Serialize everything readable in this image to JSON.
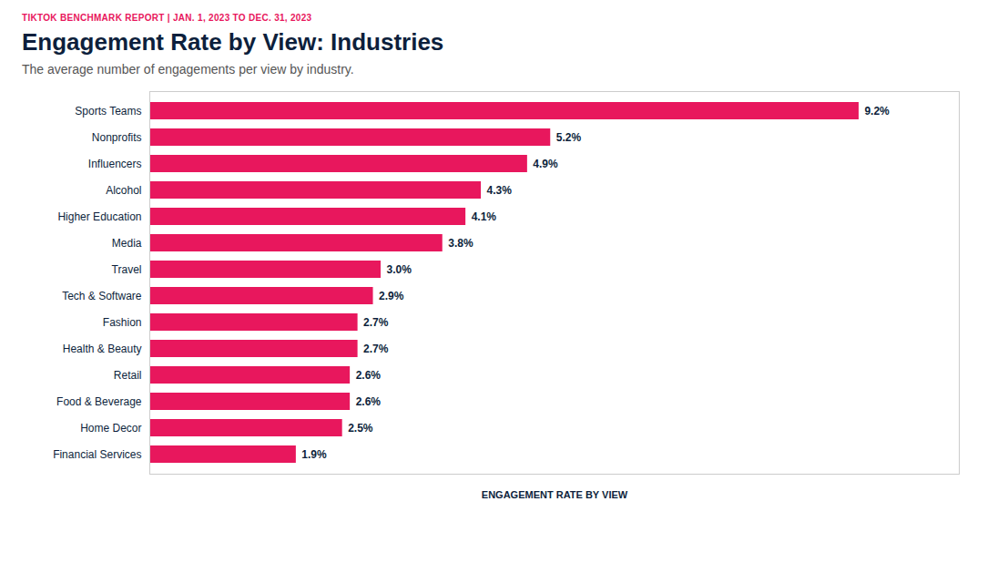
{
  "chart_data": {
    "type": "bar",
    "orientation": "horizontal",
    "title": "Engagement Rate by View: Industries",
    "subtitle": "The average number of engagements per view by industry.",
    "annotations": [
      "TIKTOK BENCHMARK REPORT  |  JAN. 1, 2023 TO DEC. 31, 2023"
    ],
    "xlabel": "ENGAGEMENT RATE BY VIEW",
    "categories": [
      "Financial Services",
      "Home Decor",
      "Food & Beverage",
      "Retail",
      "Health & Beauty",
      "Fashion",
      "Tech & Software",
      "Travel",
      "Media",
      "Higher Education",
      "Alcohol",
      "Influencers",
      "Nonprofits",
      "Sports Teams"
    ],
    "values": [
      1.9,
      2.5,
      2.6,
      2.6,
      2.7,
      2.7,
      2.9,
      3.0,
      3.8,
      4.1,
      4.3,
      4.9,
      5.2,
      9.2
    ],
    "value_labels": [
      "1.9%",
      "2.5%",
      "2.6%",
      "2.6%",
      "2.7%",
      "2.7%",
      "2.9%",
      "3.0%",
      "3.8%",
      "4.1%",
      "4.3%",
      "4.9%",
      "5.2%",
      "9.2%"
    ],
    "data_labels": true,
    "color": "#e8175d",
    "xlim": [
      0,
      10.5
    ],
    "xticks": [],
    "tick_labels": "y",
    "grid": false
  }
}
